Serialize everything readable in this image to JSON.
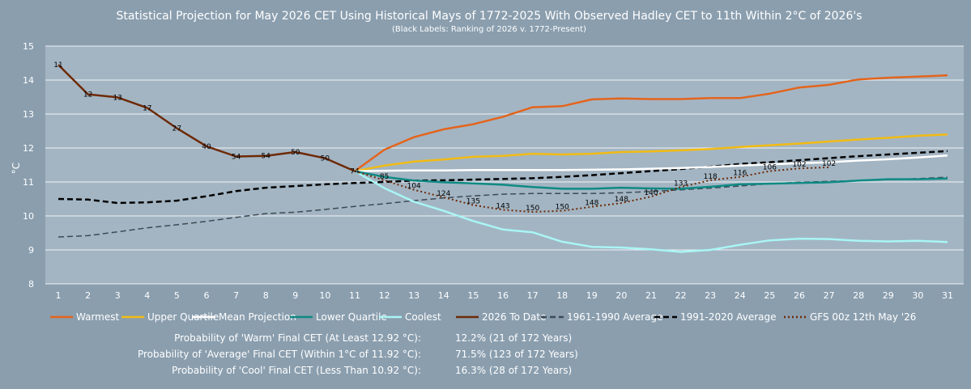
{
  "chart_data": {
    "type": "line",
    "title": "Statistical Projection for May 2026 CET Using Historical Mays of 1772-2025 With Observed Hadley CET to 11th Within 2°C of 2026's",
    "subtitle": "(Black Labels: Ranking of 2026 v. 1772-Present)",
    "xlabel": "",
    "ylabel": "°C",
    "x": [
      1,
      2,
      3,
      4,
      5,
      6,
      7,
      8,
      9,
      10,
      11,
      12,
      13,
      14,
      15,
      16,
      17,
      18,
      19,
      20,
      21,
      22,
      23,
      24,
      25,
      26,
      27,
      28,
      29,
      30,
      31
    ],
    "ylim": [
      8,
      15
    ],
    "yticks": [
      8,
      9,
      10,
      11,
      12,
      13,
      14,
      15
    ],
    "grid": true,
    "legend_position": "bottom",
    "series": [
      {
        "name": "Warmest",
        "color": "#e4641c",
        "style": "solid",
        "width": 2.5,
        "x": [
          11,
          12,
          13,
          14,
          15,
          16,
          17,
          18,
          19,
          20,
          21,
          22,
          23,
          24,
          25,
          26,
          27,
          28,
          29,
          30,
          31
        ],
        "values": [
          11.32,
          11.95,
          12.32,
          12.55,
          12.7,
          12.92,
          13.2,
          13.23,
          13.43,
          13.46,
          13.44,
          13.44,
          13.47,
          13.47,
          13.6,
          13.78,
          13.86,
          14.02,
          14.07,
          14.1,
          14.14
        ]
      },
      {
        "name": "Upper Quartile",
        "color": "#f2bb13",
        "style": "solid",
        "width": 2.5,
        "x": [
          11,
          12,
          13,
          14,
          15,
          16,
          17,
          18,
          19,
          20,
          21,
          22,
          23,
          24,
          25,
          26,
          27,
          28,
          29,
          30,
          31
        ],
        "values": [
          11.32,
          11.48,
          11.6,
          11.66,
          11.74,
          11.77,
          11.83,
          11.81,
          11.83,
          11.88,
          11.9,
          11.93,
          11.97,
          12.03,
          12.08,
          12.13,
          12.19,
          12.25,
          12.3,
          12.36,
          12.4
        ]
      },
      {
        "name": "Mean Projection",
        "color": "#ffffff",
        "style": "solid",
        "width": 2.5,
        "x": [
          11,
          12,
          13,
          14,
          15,
          16,
          17,
          18,
          19,
          20,
          21,
          22,
          23,
          24,
          25,
          26,
          27,
          28,
          29,
          30,
          31
        ],
        "values": [
          11.32,
          11.33,
          11.34,
          11.34,
          11.35,
          11.35,
          11.35,
          11.35,
          11.36,
          11.37,
          11.39,
          11.41,
          11.44,
          11.48,
          11.52,
          11.55,
          11.58,
          11.63,
          11.67,
          11.72,
          11.78
        ]
      },
      {
        "name": "Lower Quartile",
        "color": "#0f8a84",
        "style": "solid",
        "width": 2.5,
        "x": [
          11,
          12,
          13,
          14,
          15,
          16,
          17,
          18,
          19,
          20,
          21,
          22,
          23,
          24,
          25,
          26,
          27,
          28,
          29,
          30,
          31
        ],
        "values": [
          11.32,
          11.15,
          11.04,
          10.99,
          10.96,
          10.92,
          10.85,
          10.8,
          10.8,
          10.83,
          10.81,
          10.8,
          10.86,
          10.93,
          10.95,
          10.97,
          10.99,
          11.04,
          11.08,
          11.08,
          11.1
        ]
      },
      {
        "name": "Coolest",
        "color": "#a9f5f5",
        "style": "solid",
        "width": 2.5,
        "x": [
          11,
          12,
          13,
          14,
          15,
          16,
          17,
          18,
          19,
          20,
          21,
          22,
          23,
          24,
          25,
          26,
          27,
          28,
          29,
          30,
          31
        ],
        "values": [
          11.32,
          10.82,
          10.42,
          10.15,
          9.85,
          9.6,
          9.52,
          9.24,
          9.09,
          9.07,
          9.02,
          8.94,
          9.0,
          9.15,
          9.28,
          9.33,
          9.32,
          9.27,
          9.25,
          9.27,
          9.23
        ]
      },
      {
        "name": "2026 To Date",
        "color": "#6e2a06",
        "style": "solid",
        "width": 2.5,
        "x": [
          1,
          2,
          3,
          4,
          5,
          6,
          7,
          8,
          9,
          10,
          11
        ],
        "values": [
          14.45,
          13.58,
          13.49,
          13.18,
          12.58,
          12.05,
          11.75,
          11.77,
          11.88,
          11.7,
          11.32
        ],
        "rank_labels": [
          "11",
          "12",
          "13",
          "17",
          "27",
          "40",
          "54",
          "54",
          "50",
          "50",
          "74"
        ]
      },
      {
        "name": "1961-1990 Average",
        "color": "#3c4a55",
        "style": "dashed",
        "width": 1.5,
        "x": [
          1,
          2,
          3,
          4,
          5,
          6,
          7,
          8,
          9,
          10,
          11,
          12,
          13,
          14,
          15,
          16,
          17,
          18,
          19,
          20,
          21,
          22,
          23,
          24,
          25,
          26,
          27,
          28,
          29,
          30,
          31
        ],
        "values": [
          9.38,
          9.42,
          9.53,
          9.65,
          9.74,
          9.84,
          9.96,
          10.07,
          10.11,
          10.19,
          10.28,
          10.36,
          10.45,
          10.53,
          10.59,
          10.64,
          10.66,
          10.66,
          10.66,
          10.68,
          10.72,
          10.77,
          10.82,
          10.88,
          10.95,
          10.99,
          11.02,
          11.04,
          11.07,
          11.1,
          11.14
        ]
      },
      {
        "name": "1991-2020 Average",
        "color": "#000000",
        "style": "dashed",
        "width": 2.5,
        "x": [
          1,
          2,
          3,
          4,
          5,
          6,
          7,
          8,
          9,
          10,
          11,
          12,
          13,
          14,
          15,
          16,
          17,
          18,
          19,
          20,
          21,
          22,
          23,
          24,
          25,
          26,
          27,
          28,
          29,
          30,
          31
        ],
        "values": [
          10.5,
          10.48,
          10.38,
          10.4,
          10.45,
          10.58,
          10.73,
          10.83,
          10.88,
          10.93,
          10.97,
          11.0,
          11.04,
          11.05,
          11.07,
          11.09,
          11.11,
          11.15,
          11.2,
          11.26,
          11.32,
          11.38,
          11.45,
          11.53,
          11.58,
          11.64,
          11.7,
          11.76,
          11.81,
          11.86,
          11.91
        ]
      },
      {
        "name": "GFS 00z 12th May '26",
        "color": "#6e2a06",
        "style": "dotted",
        "width": 2,
        "x": [
          11,
          12,
          13,
          14,
          15,
          16,
          17,
          18,
          19,
          20,
          21,
          22,
          23,
          24,
          25,
          26,
          27
        ],
        "values": [
          11.32,
          11.05,
          10.77,
          10.55,
          10.32,
          10.18,
          10.12,
          10.15,
          10.27,
          10.38,
          10.57,
          10.85,
          11.05,
          11.15,
          11.32,
          11.4,
          11.43
        ],
        "rank_labels": [
          "74",
          "85",
          "104",
          "124",
          "135",
          "143",
          "150",
          "150",
          "148",
          "148",
          "140",
          "133",
          "118",
          "116",
          "106",
          "102",
          "102"
        ]
      }
    ]
  },
  "stats": [
    {
      "label": "Probability of 'Warm' Final CET (At Least 12.92 °C):",
      "value": "12.2% (21 of 172 Years)"
    },
    {
      "label": "Probability of 'Average' Final CET (Within 1°C of 11.92 °C):",
      "value": "71.5% (123 of 172 Years)"
    },
    {
      "label": "Probability of 'Cool' Final CET (Less Than 10.92 °C):",
      "value": "16.3% (28 of 172 Years)"
    }
  ]
}
